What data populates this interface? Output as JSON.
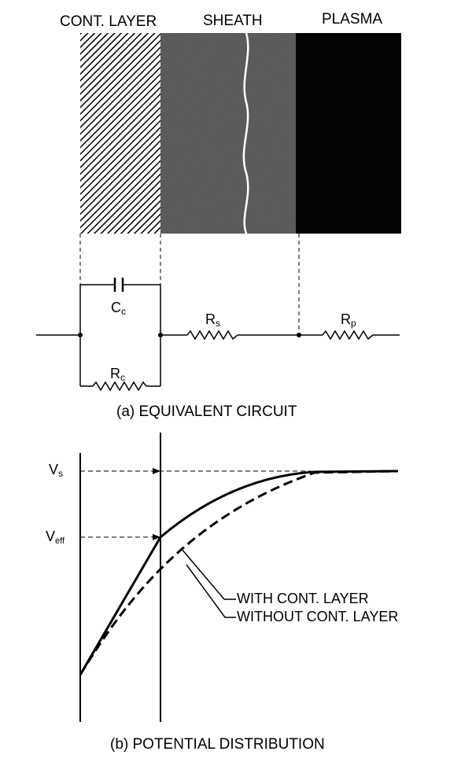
{
  "region_labels": {
    "contamination_layer": "CONT. LAYER",
    "sheath": "SHEATH",
    "plasma": "PLASMA"
  },
  "circuit": {
    "capacitor_label": "C",
    "capacitor_sub": "c",
    "rc_label": "R",
    "rc_sub": "c",
    "rs_label": "R",
    "rs_sub": "s",
    "rp_label": "R",
    "rp_sub": "p",
    "caption": "(a) EQUIVALENT CIRCUIT"
  },
  "plot": {
    "vs_label": "V",
    "vs_sub": "s",
    "veff_label": "V",
    "veff_sub": "eff",
    "legend_with": "WITH CONT. LAYER",
    "legend_without": "WITHOUT CONT. LAYER",
    "caption": "(b) POTENTIAL DISTRIBUTION"
  },
  "colors": {
    "ink": "#000000",
    "background": "#ffffff",
    "sheath_gray": "#6a6a6a",
    "plasma_black": "#050505"
  }
}
